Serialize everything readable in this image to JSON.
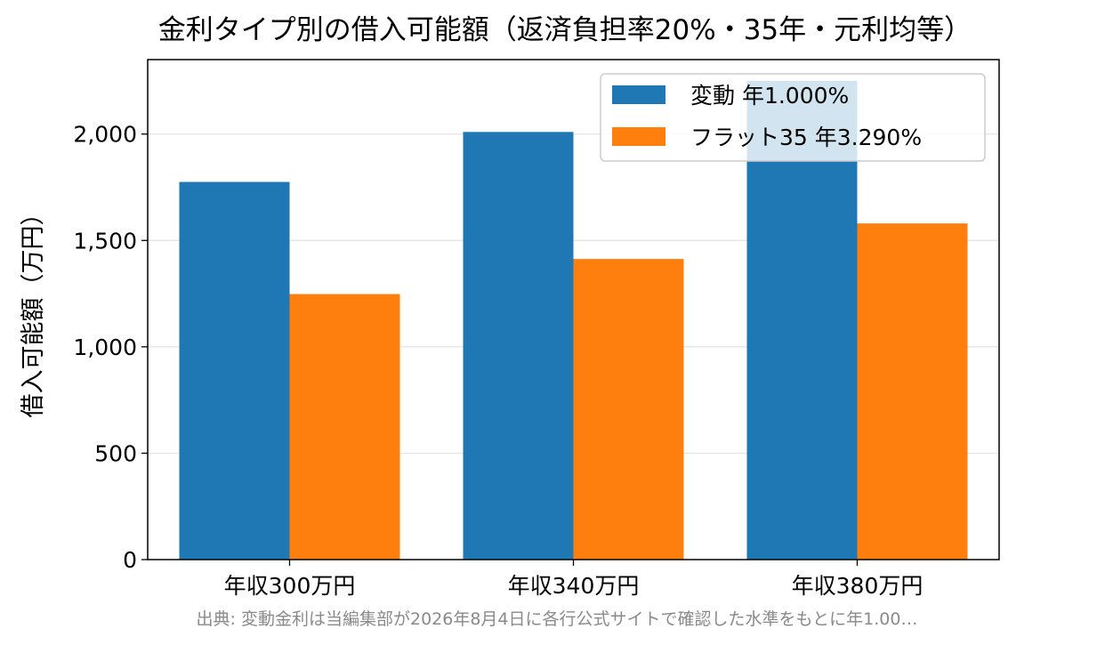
{
  "chart_data": {
    "type": "bar",
    "title": "金利タイプ別の借入可能額（返済負担率20%・35年・元利均等）",
    "xlabel": "",
    "ylabel": "借入可能額（万円）",
    "categories": [
      "年収300万円",
      "年収340万円",
      "年収380万円"
    ],
    "series": [
      {
        "name": "変動 年1.000%",
        "values": [
          1775,
          2010,
          2250
        ],
        "color": "#1f77b4"
      },
      {
        "name": "フラット35 年3.290%",
        "values": [
          1248,
          1413,
          1580
        ],
        "color": "#ff7f0e"
      }
    ],
    "ylim": [
      0,
      2350
    ],
    "yticks": [
      0,
      500,
      1000,
      1500,
      2000
    ],
    "ytick_labels": [
      "0",
      "500",
      "1,000",
      "1,500",
      "2,000"
    ],
    "grid": "y",
    "legend_position": "top-right"
  },
  "source_note": "出典: 変動金利は当編集部が2026年8月4日に各行公式サイトで確認した水準をもとに年1.00…"
}
